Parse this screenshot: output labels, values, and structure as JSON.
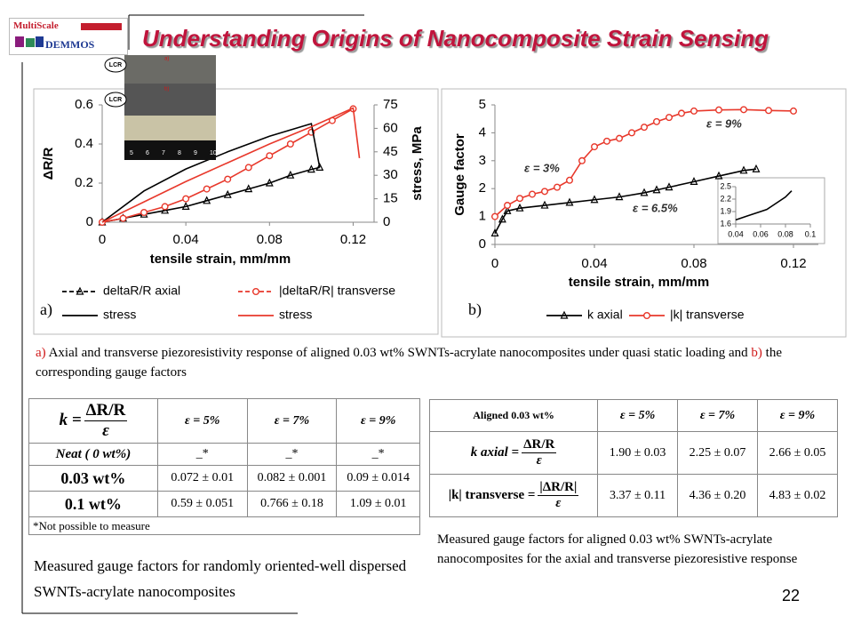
{
  "header": {
    "title": "Understanding Origins of Nanocomposite Strain Sensing",
    "logo": [
      "MultiScale",
      "DEMMOS"
    ]
  },
  "photo": {
    "labels": [
      "LCR",
      "a)",
      "LCR",
      "b)"
    ],
    "ruler": [
      "5",
      "6",
      "7",
      "8",
      "9",
      "10"
    ]
  },
  "chart_data": [
    {
      "type": "line",
      "panel_label": "a)",
      "xlabel": "tensile strain, mm/mm",
      "ylabel": "ΔR/R",
      "y2label": "stress, MPa",
      "xlim": [
        0,
        0.13
      ],
      "xticks": [
        0,
        0.04,
        0.08,
        0.12
      ],
      "ylim": [
        0,
        0.6
      ],
      "yticks": [
        0,
        0.2,
        0.4,
        0.6
      ],
      "y2lim": [
        0,
        75
      ],
      "y2ticks": [
        0,
        15,
        30,
        45,
        60,
        75
      ],
      "legend": "bottom",
      "series": [
        {
          "name": "deltaR/R axial",
          "color": "#000000",
          "marker": "triangle",
          "line_style": "dashed",
          "x": [
            0,
            0.01,
            0.02,
            0.03,
            0.04,
            0.05,
            0.06,
            0.07,
            0.08,
            0.09,
            0.1,
            0.104
          ],
          "values": [
            0,
            0.02,
            0.04,
            0.06,
            0.08,
            0.11,
            0.14,
            0.17,
            0.2,
            0.24,
            0.27,
            0.28
          ]
        },
        {
          "name": "|deltaR/R| transverse",
          "color": "#e8382b",
          "marker": "circle",
          "line_style": "dashed",
          "x": [
            0,
            0.01,
            0.02,
            0.03,
            0.04,
            0.05,
            0.06,
            0.07,
            0.08,
            0.09,
            0.1,
            0.11,
            0.12
          ],
          "values": [
            0,
            0.02,
            0.05,
            0.08,
            0.12,
            0.17,
            0.22,
            0.28,
            0.34,
            0.4,
            0.46,
            0.52,
            0.58
          ]
        },
        {
          "name": "stress",
          "color": "#000000",
          "marker": "none",
          "axis": "y2",
          "x": [
            0,
            0.02,
            0.04,
            0.06,
            0.08,
            0.1,
            0.104
          ],
          "values": [
            0,
            20,
            34,
            45,
            55,
            63,
            35
          ]
        },
        {
          "name": "stress",
          "color": "#e8382b",
          "marker": "none",
          "axis": "y2",
          "x": [
            0,
            0.02,
            0.04,
            0.06,
            0.08,
            0.1,
            0.12,
            0.123
          ],
          "values": [
            0,
            13,
            26,
            38,
            50,
            61,
            73,
            41
          ]
        }
      ]
    },
    {
      "type": "line",
      "panel_label": "b)",
      "xlabel": "tensile strain, mm/mm",
      "ylabel": "Gauge factor",
      "xlim": [
        0,
        0.13
      ],
      "xticks": [
        0,
        0.04,
        0.08,
        0.12
      ],
      "ylim": [
        0,
        5
      ],
      "yticks": [
        0,
        1,
        2,
        3,
        4,
        5
      ],
      "legend": "bottom",
      "annotations": [
        "ε = 3%",
        "ε = 6.5%",
        "ε = 9%"
      ],
      "series": [
        {
          "name": "k axial",
          "color": "#000000",
          "marker": "triangle",
          "x": [
            0,
            0.003,
            0.005,
            0.01,
            0.02,
            0.03,
            0.04,
            0.05,
            0.06,
            0.065,
            0.07,
            0.08,
            0.09,
            0.1,
            0.105
          ],
          "values": [
            0.4,
            0.9,
            1.2,
            1.3,
            1.4,
            1.5,
            1.6,
            1.7,
            1.85,
            1.95,
            2.05,
            2.25,
            2.45,
            2.65,
            2.7
          ]
        },
        {
          "name": "|k| transverse",
          "color": "#e8382b",
          "marker": "circle",
          "x": [
            0,
            0.005,
            0.01,
            0.015,
            0.02,
            0.025,
            0.03,
            0.035,
            0.04,
            0.045,
            0.05,
            0.055,
            0.06,
            0.065,
            0.07,
            0.075,
            0.08,
            0.09,
            0.1,
            0.11,
            0.12
          ],
          "values": [
            1.0,
            1.4,
            1.65,
            1.8,
            1.9,
            2.05,
            2.3,
            3.0,
            3.5,
            3.7,
            3.8,
            4.0,
            4.2,
            4.4,
            4.55,
            4.7,
            4.78,
            4.82,
            4.83,
            4.8,
            4.78
          ]
        }
      ]
    },
    {
      "type": "line",
      "color": "#000000",
      "xlim": [
        0.04,
        0.1
      ],
      "xticks": [
        0.04,
        0.06,
        0.08,
        0.1
      ],
      "ylim": [
        1.6,
        2.5
      ],
      "yticks": [
        1.6,
        1.9,
        2.2,
        2.5
      ],
      "x": [
        0.04,
        0.05,
        0.06,
        0.065,
        0.07,
        0.08,
        0.085
      ],
      "values": [
        1.7,
        1.8,
        1.9,
        1.95,
        2.05,
        2.25,
        2.4
      ]
    }
  ],
  "caption": [
    "a)",
    " Axial and transverse piezoresistivity  response of aligned 0.03 wt% SWNTs-acrylate nanocomposites under quasi static loading and ",
    "b)",
    " the corresponding gauge factors"
  ],
  "table_random": {
    "corner": {
      "lhs": "k =",
      "num": "ΔR/R",
      "den": "ε"
    },
    "columns": [
      "ε = 5%",
      "ε = 7%",
      "ε = 9%"
    ],
    "rows": [
      {
        "label": "Neat ( 0 wt%)",
        "cells": [
          "_*",
          "_*",
          "_*"
        ]
      },
      {
        "label": "0.03 wt%",
        "cells": [
          "0.072 ± 0.01",
          "0.082 ± 0.001",
          "0.09 ± 0.014"
        ]
      },
      {
        "label": "0.1 wt%",
        "cells": [
          "0.59 ± 0.051",
          "0.766 ± 0.18",
          "1.09 ± 0.01"
        ]
      }
    ],
    "footnote": "*Not possible to measure",
    "caption": "Measured gauge factors for randomly oriented-well dispersed SWNTs-acrylate nanocomposites"
  },
  "table_aligned": {
    "corner": "Aligned 0.03 wt%",
    "columns": [
      "ε = 5%",
      "ε = 7%",
      "ε = 9%"
    ],
    "rows": [
      {
        "label": {
          "lhs": "k axial =",
          "num": "ΔR/R",
          "den": "ε"
        },
        "cells": [
          "1.90 ± 0.03",
          "2.25 ± 0.07",
          "2.66 ± 0.05"
        ]
      },
      {
        "label": {
          "lhs": "|k| transverse =",
          "num": "|ΔR/R|",
          "den": "ε"
        },
        "cells": [
          "3.37 ± 0.11",
          "4.36 ± 0.20",
          "4.83 ± 0.02"
        ]
      }
    ],
    "caption": "Measured gauge factors for aligned 0.03 wt% SWNTs-acrylate nanocomposites for the axial and transverse piezoresistive response"
  },
  "page_number": "22"
}
